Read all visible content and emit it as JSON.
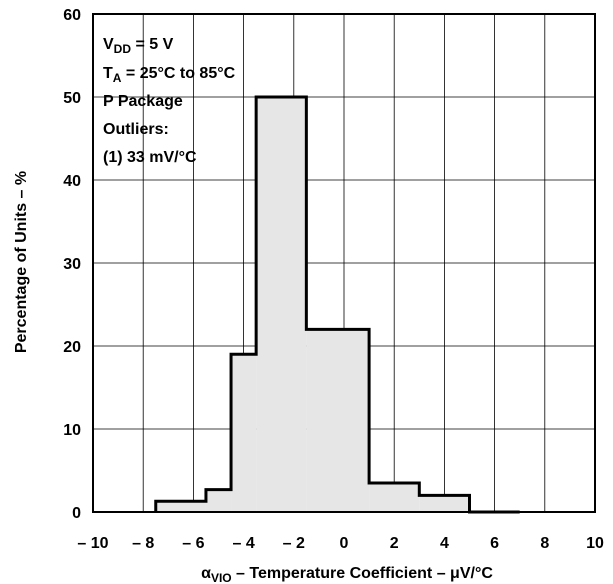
{
  "chart_data": {
    "type": "bar",
    "x": [
      -8.5,
      -6.5,
      -4.5,
      -2.5,
      -0.5,
      1.5,
      3.5,
      5.5
    ],
    "bin_edges": [
      -7.5,
      -5.5,
      -4.5,
      -3.5,
      -1.5,
      1,
      3,
      5,
      7
    ],
    "values": [
      1.3,
      2.7,
      19,
      50,
      22,
      3.5,
      2,
      0
    ],
    "xlim": [
      -10,
      10
    ],
    "ylim": [
      0,
      60
    ],
    "xticks": [
      "– 10",
      "– 8",
      "– 6",
      "– 4",
      "– 2",
      "0",
      "2",
      "4",
      "6",
      "8",
      "10"
    ],
    "yticks": [
      "0",
      "10",
      "20",
      "30",
      "40",
      "50",
      "60"
    ],
    "ylabel": "Percentage of Units – %",
    "xlabel": {
      "symbol": "α",
      "sub": "VIO",
      "rest": " – Temperature Coefficient – μV/°C"
    },
    "grid": true,
    "fill_color": "#e6e6e6",
    "annotations": {
      "vdd": {
        "main": "V",
        "sub": "DD",
        "rest": " = 5 V"
      },
      "ta": {
        "main": "T",
        "sub": "A",
        "rest": " = 25°C to 85°C"
      },
      "package": "P Package",
      "outliers_label": "Outliers:",
      "outliers_value": "(1) 33 mV/°C"
    }
  }
}
